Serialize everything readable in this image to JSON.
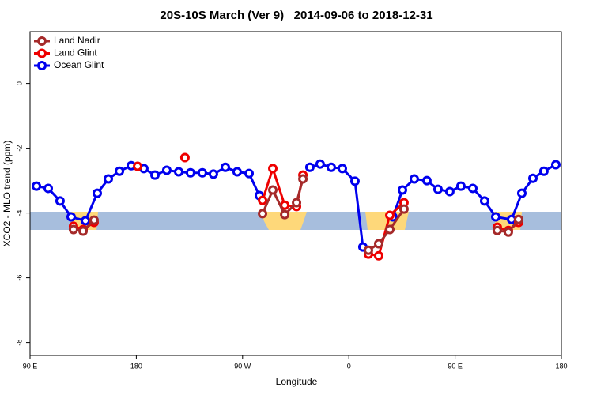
{
  "chart_data": {
    "type": "line",
    "title": "20S-10S March (Ver 9)   2014-09-06 to 2018-12-31",
    "xlabel": "Longitude",
    "ylabel": "XCO2 - MLO trend (ppm)",
    "xlim": [
      90,
      540
    ],
    "xticks": [
      {
        "value": 90,
        "label": "90 E"
      },
      180,
      {
        "value": 270,
        "label": "90 W"
      },
      {
        "value": 360,
        "label": "0"
      },
      {
        "value": 450,
        "label": "90 E"
      },
      {
        "value": 540,
        "label": "180"
      }
    ],
    "ylim": [
      -8.4,
      1.6
    ],
    "yticks": [
      0,
      -2,
      -4,
      -6,
      -8
    ],
    "legend": "top-left",
    "series": [
      {
        "name": "Land Nadir",
        "color": "#a52a2a",
        "x": [
          126.8,
          134.9,
          144.2,
          null,
          286.9,
          295.6,
          305.7,
          315.7,
          321.1,
          null,
          376.6,
          385.3,
          394.7,
          406.7,
          null,
          485.7,
          495.1,
          503.8
        ],
        "values": [
          -4.51,
          -4.56,
          -4.22,
          null,
          -4.02,
          -3.29,
          -4.05,
          -3.68,
          -2.95,
          null,
          -5.15,
          -4.95,
          -4.51,
          -3.88,
          null,
          -4.54,
          -4.59,
          -4.2
        ]
      },
      {
        "name": "Land Glint",
        "color": "#ee0000",
        "x": [
          126.8,
          134.9,
          144.2,
          null,
          181.1,
          null,
          221.2,
          null,
          286.9,
          295.6,
          305.7,
          315.7,
          321.1,
          null,
          376.6,
          385.3,
          394.7,
          406.7,
          null,
          485.7,
          495.1,
          503.8
        ],
        "values": [
          -4.41,
          -4.51,
          -4.29,
          null,
          -2.56,
          null,
          -2.29,
          null,
          -3.61,
          -2.63,
          -3.76,
          -3.8,
          -2.83,
          null,
          -5.27,
          -5.32,
          -4.07,
          -3.68,
          null,
          -4.44,
          -4.54,
          -4.29
        ]
      },
      {
        "name": "Ocean Glint",
        "color": "#0000ee",
        "x": [
          95.4,
          105.4,
          115.4,
          124.8,
          136.9,
          146.9,
          156.3,
          165.7,
          175.7,
          186.4,
          195.8,
          205.8,
          215.9,
          225.9,
          235.9,
          245.3,
          255.4,
          265.4,
          275.5,
          284.2,
          null,
          327.0,
          335.7,
          345.1,
          354.5,
          365.2,
          371.9,
          null,
          397.3,
          405.4,
          415.4,
          426.1,
          435.5,
          445.5,
          454.9,
          465.0,
          475.0,
          484.4,
          497.8,
          506.5,
          515.9,
          525.2,
          535.3
        ],
        "values": [
          -3.17,
          -3.24,
          -3.63,
          -4.12,
          -4.24,
          -3.39,
          -2.95,
          -2.71,
          -2.54,
          -2.63,
          -2.83,
          -2.68,
          -2.73,
          -2.76,
          -2.76,
          -2.8,
          -2.59,
          -2.73,
          -2.78,
          -3.46,
          null,
          -2.59,
          -2.49,
          -2.59,
          -2.63,
          -3.02,
          -5.05,
          null,
          -4.12,
          -3.29,
          -2.95,
          -3.0,
          -3.27,
          -3.34,
          -3.17,
          -3.24,
          -3.63,
          -4.12,
          -4.2,
          -3.39,
          -2.93,
          -2.71,
          -2.51
        ]
      }
    ]
  }
}
